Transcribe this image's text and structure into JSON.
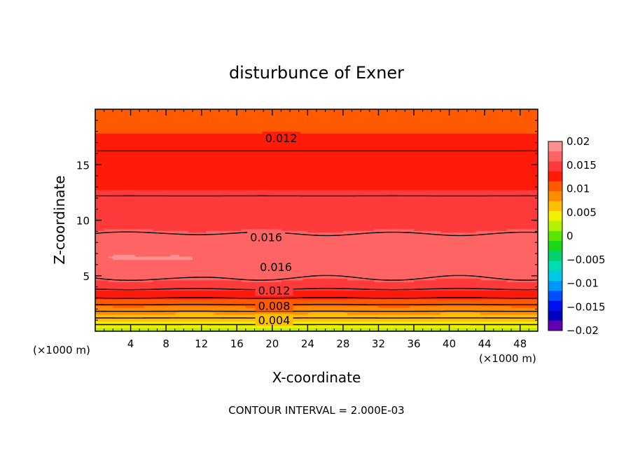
{
  "chart_data": {
    "type": "heatmap",
    "title": "disturbunce of Exner",
    "xlabel": "X-coordinate",
    "ylabel": "Z-coordinate",
    "x_unit_left": "(×1000 m)",
    "x_unit_right": "(×1000 m)",
    "xlim": [
      0,
      50
    ],
    "ylim": [
      0,
      20
    ],
    "x_ticks": [
      4,
      8,
      12,
      16,
      20,
      24,
      28,
      32,
      36,
      40,
      44,
      48
    ],
    "y_ticks": [
      5,
      10,
      15
    ],
    "footer": "CONTOUR INTERVAL = 2.000E-03",
    "colorbar": {
      "labels": [
        "0.02",
        "0.015",
        "0.01",
        "0.005",
        "0",
        "−0.005",
        "−0.01",
        "−0.015",
        "−0.02"
      ],
      "values": [
        0.02,
        0.015,
        0.01,
        0.005,
        0,
        -0.005,
        -0.01,
        -0.015,
        -0.02
      ],
      "colors_top_to_bottom": [
        "#ff9090",
        "#ff6464",
        "#ff3a3a",
        "#ff1a0a",
        "#ff5a00",
        "#ff8c00",
        "#ffbe00",
        "#f0f000",
        "#b4f000",
        "#5ae600",
        "#18d818",
        "#00d070",
        "#00dcb4",
        "#00c8e6",
        "#0096ff",
        "#0050ff",
        "#0010f0",
        "#0000c0",
        "#6000b0"
      ]
    },
    "contour_labels": [
      {
        "text": "0.012",
        "x": 19.2,
        "z": 17.4
      },
      {
        "text": "0.016",
        "x": 17.5,
        "z": 8.5
      },
      {
        "text": "0.016",
        "x": 18.6,
        "z": 5.8
      },
      {
        "text": "0.012",
        "x": 18.4,
        "z": 3.7
      },
      {
        "text": "0.008",
        "x": 18.4,
        "z": 2.3
      },
      {
        "text": "0.004",
        "x": 18.4,
        "z": 1.0
      }
    ],
    "profile_z": [
      0,
      0.3,
      0.6,
      0.9,
      1.2,
      1.5,
      1.8,
      2.1,
      2.4,
      2.7,
      3.0,
      3.4,
      3.8,
      4.2,
      4.6,
      5.2,
      5.8,
      6.6,
      7.5,
      8.5,
      9.5,
      11.0,
      12.5,
      14.0,
      15.5,
      17.0,
      18.5,
      20.0
    ],
    "profile_values": [
      0.002,
      0.003,
      0.004,
      0.005,
      0.006,
      0.007,
      0.008,
      0.009,
      0.01,
      0.011,
      0.012,
      0.013,
      0.014,
      0.015,
      0.0158,
      0.0164,
      0.017,
      0.0175,
      0.0172,
      0.0162,
      0.0155,
      0.0148,
      0.0138,
      0.013,
      0.0122,
      0.0118,
      0.0114,
      0.0112
    ],
    "contour_levels": [
      0.002,
      0.004,
      0.006,
      0.008,
      0.01,
      0.012,
      0.014,
      0.016,
      0.016,
      0.014,
      0.012
    ]
  }
}
